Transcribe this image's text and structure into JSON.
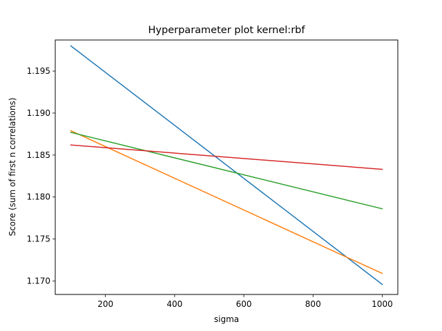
{
  "chart_data": {
    "type": "line",
    "title": "Hyperparameter plot kernel:rbf",
    "xlabel": "sigma",
    "ylabel": "Score (sum of first n correlations)",
    "xlim": [
      55,
      1045
    ],
    "ylim": [
      1.1684,
      1.1987
    ],
    "xticks": [
      200,
      400,
      600,
      800,
      1000
    ],
    "yticks": [
      1.17,
      1.175,
      1.18,
      1.185,
      1.19,
      1.195
    ],
    "ytick_labels": [
      "1.170",
      "1.175",
      "1.180",
      "1.185",
      "1.190",
      "1.195"
    ],
    "grid": false,
    "series": [
      {
        "color": "#1f77b4",
        "x": [
          100,
          1000
        ],
        "y": [
          1.198,
          1.1696
        ]
      },
      {
        "color": "#ff7f0e",
        "x": [
          100,
          1000
        ],
        "y": [
          1.1879,
          1.1709
        ]
      },
      {
        "color": "#2ca02c",
        "x": [
          100,
          1000
        ],
        "y": [
          1.1877,
          1.1786
        ]
      },
      {
        "color": "#d62728",
        "x": [
          100,
          1000
        ],
        "y": [
          1.1862,
          1.1833
        ]
      }
    ]
  }
}
